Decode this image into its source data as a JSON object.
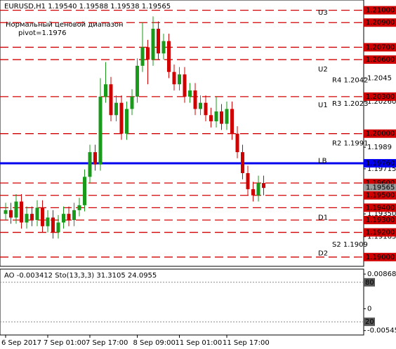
{
  "chart_data": {
    "type": "candlestick",
    "title": "EURUSD,H1  1.19540 1.19588 1.19538 1.19565",
    "subtitle": "Нормальный ценовой диапазон",
    "pivot_text": "pivot=1.1976",
    "up_color": "#1a9a1a",
    "down_color": "#d00000",
    "categories": [
      "6 Sep 2017",
      null,
      null,
      null,
      null,
      null,
      null,
      null,
      "7 Sep 01:00",
      null,
      null,
      null,
      null,
      null,
      null,
      null,
      "7 Sep 17:00",
      null,
      null,
      null,
      null,
      null,
      null,
      null,
      null,
      "8 Sep 09:00",
      null,
      null,
      null,
      null,
      null,
      null,
      null,
      "11 Sep 01:00",
      null,
      null,
      null,
      null,
      null,
      null,
      null,
      null,
      "11 Sep 17:00",
      null,
      null,
      null,
      null,
      null,
      null,
      null
    ],
    "open": [
      1.1935,
      1.1938,
      1.1932,
      1.1945,
      1.1928,
      1.1935,
      1.193,
      1.194,
      1.1925,
      1.1932,
      1.192,
      1.1928,
      1.1935,
      1.193,
      1.1938,
      1.1942,
      1.1965,
      1.1985,
      1.1975,
      1.203,
      1.204,
      1.2015,
      1.2025,
      1.2,
      1.202,
      1.203,
      1.2055,
      1.207,
      1.206,
      1.2085,
      1.2065,
      1.2075,
      1.205,
      1.204,
      1.2048,
      1.203,
      1.2035,
      1.202,
      1.2025,
      1.2015,
      1.201,
      1.2018,
      1.2008,
      1.202,
      1.2,
      1.1985,
      1.1968,
      1.1955,
      1.195,
      1.196
    ],
    "high": [
      1.1944,
      1.1944,
      1.1951,
      1.1951,
      1.1941,
      1.1941,
      1.1946,
      1.1946,
      1.1938,
      1.1938,
      1.1934,
      1.1941,
      1.1941,
      1.1944,
      1.1948,
      1.1971,
      1.1991,
      1.1991,
      1.2045,
      1.2058,
      1.2046,
      1.2031,
      1.2031,
      1.2026,
      1.2036,
      1.2061,
      1.209,
      1.2076,
      1.2095,
      1.2091,
      1.2081,
      1.2081,
      1.2056,
      1.2054,
      1.2054,
      1.2041,
      1.2041,
      1.2031,
      1.2031,
      1.2021,
      1.203,
      1.2024,
      1.2026,
      1.2026,
      1.2006,
      1.1991,
      1.1974,
      1.1961,
      1.1966,
      1.1966
    ],
    "low": [
      1.193,
      1.1927,
      1.1927,
      1.1923,
      1.1923,
      1.1925,
      1.1925,
      1.192,
      1.192,
      1.1915,
      1.1915,
      1.1923,
      1.1925,
      1.1925,
      1.1933,
      1.1937,
      1.196,
      1.197,
      1.197,
      1.2025,
      1.201,
      1.201,
      1.1995,
      1.1995,
      1.2015,
      1.2025,
      1.205,
      1.204,
      1.2055,
      1.206,
      1.206,
      1.2045,
      1.2035,
      1.2035,
      1.2025,
      1.2025,
      1.2015,
      1.2015,
      1.201,
      1.2005,
      1.2005,
      1.2003,
      1.2003,
      1.1995,
      1.198,
      1.1963,
      1.195,
      1.1945,
      1.1945,
      1.195
    ],
    "close": [
      1.1938,
      1.1932,
      1.1945,
      1.1928,
      1.1935,
      1.193,
      1.194,
      1.1925,
      1.1932,
      1.192,
      1.1928,
      1.1935,
      1.193,
      1.1938,
      1.1942,
      1.1965,
      1.1985,
      1.1975,
      1.203,
      1.204,
      1.2015,
      1.2025,
      1.2,
      1.202,
      1.203,
      1.2055,
      1.207,
      1.206,
      1.2085,
      1.2065,
      1.2075,
      1.205,
      1.204,
      1.2048,
      1.203,
      1.2035,
      1.202,
      1.2025,
      1.2015,
      1.201,
      1.2018,
      1.2008,
      1.202,
      1.2,
      1.1985,
      1.1968,
      1.1955,
      1.195,
      1.196,
      1.1956
    ],
    "ylim": [
      1.18925,
      1.21083
    ],
    "yticks": [
      {
        "value": 1.2045,
        "label": "1.2045"
      },
      {
        "value": 1.2026,
        "label": "1.20260"
      },
      {
        "value": 1.1989,
        "label": "1.1989"
      },
      {
        "value": 1.19715,
        "label": "1.19715"
      },
      {
        "value": 1.1935,
        "label": "1.19350"
      },
      {
        "value": 1.19165,
        "label": "1.19165"
      }
    ],
    "levels": [
      {
        "value": 1.21,
        "label": "1.21000",
        "color": "#d00000"
      },
      {
        "value": 1.209,
        "label": "1.20900",
        "color": "#d00000"
      },
      {
        "value": 1.207,
        "label": "1.20700",
        "color": "#d00000"
      },
      {
        "value": 1.206,
        "label": "1.20600",
        "color": "#d00000"
      },
      {
        "value": 1.203,
        "label": "1.20300",
        "color": "#d00000"
      },
      {
        "value": 1.2,
        "label": "1.20000",
        "color": "#d00000"
      },
      {
        "value": 1.1976,
        "label": "1.19760",
        "color": "#0000ee"
      },
      {
        "value": 1.196,
        "label": "1.19600",
        "color": "#d00000"
      },
      {
        "value": 1.195,
        "label": "1.19500",
        "color": "#d00000"
      },
      {
        "value": 1.194,
        "label": "1.19400",
        "color": "#d00000"
      },
      {
        "value": 1.193,
        "label": "1.19300",
        "color": "#d00000"
      },
      {
        "value": 1.192,
        "label": "1.19200",
        "color": "#d00000"
      },
      {
        "value": 1.19,
        "label": "1.19000",
        "color": "#d00000"
      }
    ],
    "current": {
      "value": 1.19565,
      "label": "1.19565",
      "color": "#9a9a9a"
    },
    "zones": [
      {
        "label": "U3",
        "value": 1.2098
      },
      {
        "label": "U2",
        "value": 1.2052
      },
      {
        "label": "U1",
        "value": 1.2023
      },
      {
        "label": "LB",
        "value": 1.1978
      },
      {
        "label": "D1",
        "value": 1.1932
      },
      {
        "label": "D2",
        "value": 1.1903
      }
    ],
    "pivot_notes": [
      {
        "label": "R4 1.2042",
        "value": 1.2042
      },
      {
        "label": "R3 1.2023",
        "value": 1.2023
      },
      {
        "label": "R2 1.1991",
        "value": 1.1991
      },
      {
        "label": "S2 1.1909",
        "value": 1.1909
      }
    ],
    "indicator_title": "AO -0.003412  Sto(13,3,3) 31.3105 24.0955",
    "ao_lim": [
      -0.00656,
      0.00993
    ],
    "ao_ticks": [
      0.008687,
      0,
      -0.005456
    ],
    "sto_lim": [
      0,
      100
    ],
    "sto_ticks": [
      80,
      20
    ]
  }
}
